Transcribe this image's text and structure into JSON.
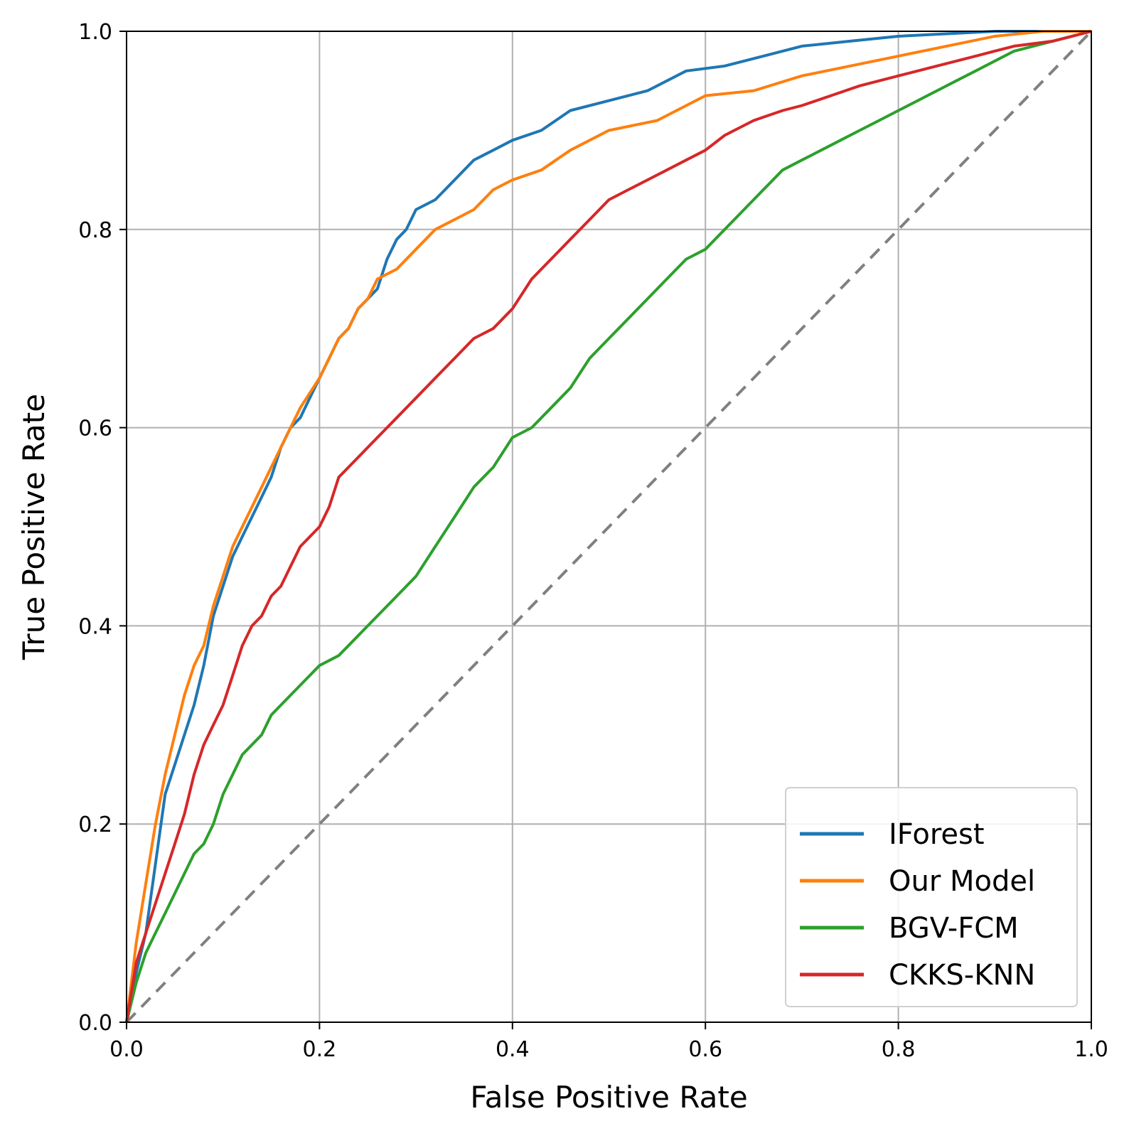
{
  "chart_data": {
    "type": "line",
    "title": "",
    "xlabel": "False Positive Rate",
    "ylabel": "True Positive Rate",
    "xlim": [
      0.0,
      1.0
    ],
    "ylim": [
      0.0,
      1.0
    ],
    "grid": true,
    "legend_position": "lower-right",
    "xticks": [
      "0.0",
      "0.2",
      "0.4",
      "0.6",
      "0.8",
      "1.0"
    ],
    "yticks": [
      "0.0",
      "0.2",
      "0.4",
      "0.6",
      "0.8",
      "1.0"
    ],
    "series": [
      {
        "name": "IForest",
        "color": "#1f77b4",
        "points": [
          [
            0,
            0
          ],
          [
            0.01,
            0.05
          ],
          [
            0.02,
            0.09
          ],
          [
            0.03,
            0.16
          ],
          [
            0.04,
            0.23
          ],
          [
            0.05,
            0.26
          ],
          [
            0.06,
            0.29
          ],
          [
            0.07,
            0.32
          ],
          [
            0.08,
            0.36
          ],
          [
            0.09,
            0.41
          ],
          [
            0.1,
            0.44
          ],
          [
            0.11,
            0.47
          ],
          [
            0.12,
            0.49
          ],
          [
            0.13,
            0.51
          ],
          [
            0.14,
            0.53
          ],
          [
            0.15,
            0.55
          ],
          [
            0.16,
            0.58
          ],
          [
            0.17,
            0.6
          ],
          [
            0.18,
            0.61
          ],
          [
            0.19,
            0.63
          ],
          [
            0.2,
            0.65
          ],
          [
            0.21,
            0.67
          ],
          [
            0.22,
            0.69
          ],
          [
            0.23,
            0.7
          ],
          [
            0.24,
            0.72
          ],
          [
            0.25,
            0.73
          ],
          [
            0.26,
            0.74
          ],
          [
            0.27,
            0.77
          ],
          [
            0.28,
            0.79
          ],
          [
            0.29,
            0.8
          ],
          [
            0.3,
            0.82
          ],
          [
            0.32,
            0.83
          ],
          [
            0.34,
            0.85
          ],
          [
            0.36,
            0.87
          ],
          [
            0.38,
            0.88
          ],
          [
            0.4,
            0.89
          ],
          [
            0.43,
            0.9
          ],
          [
            0.46,
            0.92
          ],
          [
            0.5,
            0.93
          ],
          [
            0.54,
            0.94
          ],
          [
            0.58,
            0.96
          ],
          [
            0.62,
            0.965
          ],
          [
            0.66,
            0.975
          ],
          [
            0.7,
            0.985
          ],
          [
            0.75,
            0.99
          ],
          [
            0.8,
            0.995
          ],
          [
            0.9,
            1.0
          ],
          [
            1.0,
            1.0
          ]
        ]
      },
      {
        "name": "Our Model",
        "color": "#ff7f0e",
        "points": [
          [
            0,
            0
          ],
          [
            0.01,
            0.08
          ],
          [
            0.02,
            0.14
          ],
          [
            0.03,
            0.2
          ],
          [
            0.04,
            0.25
          ],
          [
            0.05,
            0.29
          ],
          [
            0.06,
            0.33
          ],
          [
            0.07,
            0.36
          ],
          [
            0.08,
            0.38
          ],
          [
            0.09,
            0.42
          ],
          [
            0.1,
            0.45
          ],
          [
            0.11,
            0.48
          ],
          [
            0.12,
            0.5
          ],
          [
            0.13,
            0.52
          ],
          [
            0.14,
            0.54
          ],
          [
            0.15,
            0.56
          ],
          [
            0.16,
            0.58
          ],
          [
            0.17,
            0.6
          ],
          [
            0.18,
            0.62
          ],
          [
            0.19,
            0.635
          ],
          [
            0.2,
            0.65
          ],
          [
            0.21,
            0.67
          ],
          [
            0.22,
            0.69
          ],
          [
            0.23,
            0.7
          ],
          [
            0.24,
            0.72
          ],
          [
            0.25,
            0.73
          ],
          [
            0.26,
            0.75
          ],
          [
            0.28,
            0.76
          ],
          [
            0.3,
            0.78
          ],
          [
            0.32,
            0.8
          ],
          [
            0.34,
            0.81
          ],
          [
            0.36,
            0.82
          ],
          [
            0.38,
            0.84
          ],
          [
            0.4,
            0.85
          ],
          [
            0.43,
            0.86
          ],
          [
            0.46,
            0.88
          ],
          [
            0.5,
            0.9
          ],
          [
            0.55,
            0.91
          ],
          [
            0.6,
            0.935
          ],
          [
            0.65,
            0.94
          ],
          [
            0.7,
            0.955
          ],
          [
            0.75,
            0.965
          ],
          [
            0.8,
            0.975
          ],
          [
            0.85,
            0.985
          ],
          [
            0.9,
            0.995
          ],
          [
            0.95,
            1.0
          ],
          [
            1.0,
            1.0
          ]
        ]
      },
      {
        "name": "BGV-FCM",
        "color": "#2ca02c",
        "points": [
          [
            0,
            0
          ],
          [
            0.01,
            0.04
          ],
          [
            0.02,
            0.07
          ],
          [
            0.03,
            0.09
          ],
          [
            0.04,
            0.11
          ],
          [
            0.05,
            0.13
          ],
          [
            0.06,
            0.15
          ],
          [
            0.07,
            0.17
          ],
          [
            0.08,
            0.18
          ],
          [
            0.09,
            0.2
          ],
          [
            0.1,
            0.23
          ],
          [
            0.11,
            0.25
          ],
          [
            0.12,
            0.27
          ],
          [
            0.14,
            0.29
          ],
          [
            0.15,
            0.31
          ],
          [
            0.16,
            0.32
          ],
          [
            0.18,
            0.34
          ],
          [
            0.2,
            0.36
          ],
          [
            0.22,
            0.37
          ],
          [
            0.24,
            0.39
          ],
          [
            0.26,
            0.41
          ],
          [
            0.28,
            0.43
          ],
          [
            0.3,
            0.45
          ],
          [
            0.32,
            0.48
          ],
          [
            0.34,
            0.51
          ],
          [
            0.36,
            0.54
          ],
          [
            0.38,
            0.56
          ],
          [
            0.4,
            0.59
          ],
          [
            0.42,
            0.6
          ],
          [
            0.44,
            0.62
          ],
          [
            0.46,
            0.64
          ],
          [
            0.48,
            0.67
          ],
          [
            0.5,
            0.69
          ],
          [
            0.52,
            0.71
          ],
          [
            0.54,
            0.73
          ],
          [
            0.56,
            0.75
          ],
          [
            0.58,
            0.77
          ],
          [
            0.6,
            0.78
          ],
          [
            0.62,
            0.8
          ],
          [
            0.64,
            0.82
          ],
          [
            0.66,
            0.84
          ],
          [
            0.68,
            0.86
          ],
          [
            0.7,
            0.87
          ],
          [
            0.72,
            0.88
          ],
          [
            0.74,
            0.89
          ],
          [
            0.76,
            0.9
          ],
          [
            0.78,
            0.91
          ],
          [
            0.8,
            0.92
          ],
          [
            0.82,
            0.93
          ],
          [
            0.84,
            0.94
          ],
          [
            0.86,
            0.95
          ],
          [
            0.88,
            0.96
          ],
          [
            0.9,
            0.97
          ],
          [
            0.92,
            0.98
          ],
          [
            0.94,
            0.985
          ],
          [
            0.96,
            0.99
          ],
          [
            0.98,
            0.995
          ],
          [
            1.0,
            1.0
          ]
        ]
      },
      {
        "name": "CKKS-KNN",
        "color": "#d62728",
        "points": [
          [
            0,
            0
          ],
          [
            0.01,
            0.06
          ],
          [
            0.02,
            0.09
          ],
          [
            0.03,
            0.12
          ],
          [
            0.04,
            0.15
          ],
          [
            0.05,
            0.18
          ],
          [
            0.06,
            0.21
          ],
          [
            0.07,
            0.25
          ],
          [
            0.08,
            0.28
          ],
          [
            0.09,
            0.3
          ],
          [
            0.1,
            0.32
          ],
          [
            0.11,
            0.35
          ],
          [
            0.12,
            0.38
          ],
          [
            0.13,
            0.4
          ],
          [
            0.14,
            0.41
          ],
          [
            0.15,
            0.43
          ],
          [
            0.16,
            0.44
          ],
          [
            0.17,
            0.46
          ],
          [
            0.18,
            0.48
          ],
          [
            0.2,
            0.5
          ],
          [
            0.21,
            0.52
          ],
          [
            0.22,
            0.55
          ],
          [
            0.23,
            0.56
          ],
          [
            0.24,
            0.57
          ],
          [
            0.26,
            0.59
          ],
          [
            0.28,
            0.61
          ],
          [
            0.3,
            0.63
          ],
          [
            0.32,
            0.65
          ],
          [
            0.34,
            0.67
          ],
          [
            0.36,
            0.69
          ],
          [
            0.38,
            0.7
          ],
          [
            0.4,
            0.72
          ],
          [
            0.42,
            0.75
          ],
          [
            0.44,
            0.77
          ],
          [
            0.46,
            0.79
          ],
          [
            0.48,
            0.81
          ],
          [
            0.5,
            0.83
          ],
          [
            0.52,
            0.84
          ],
          [
            0.54,
            0.85
          ],
          [
            0.56,
            0.86
          ],
          [
            0.58,
            0.87
          ],
          [
            0.6,
            0.88
          ],
          [
            0.62,
            0.895
          ],
          [
            0.65,
            0.91
          ],
          [
            0.68,
            0.92
          ],
          [
            0.7,
            0.925
          ],
          [
            0.73,
            0.935
          ],
          [
            0.76,
            0.945
          ],
          [
            0.8,
            0.955
          ],
          [
            0.84,
            0.965
          ],
          [
            0.88,
            0.975
          ],
          [
            0.92,
            0.985
          ],
          [
            0.96,
            0.99
          ],
          [
            1.0,
            1.0
          ]
        ]
      }
    ],
    "reference_line": {
      "name": "chance",
      "color": "#808080",
      "points": [
        [
          0,
          0
        ],
        [
          1,
          1
        ]
      ]
    }
  }
}
